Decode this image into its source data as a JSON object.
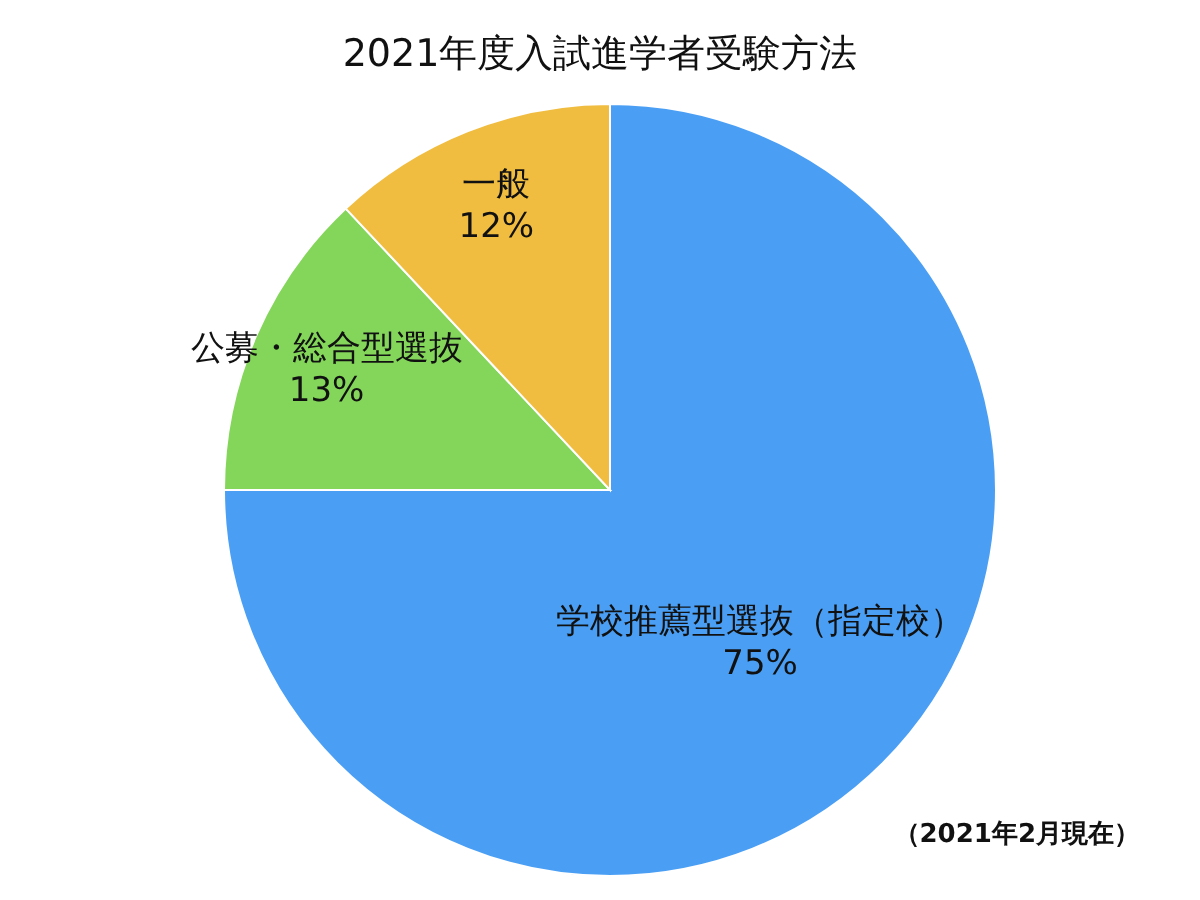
{
  "chart_data": {
    "type": "pie",
    "title": "2021年度入試進学者受験方法",
    "categories": [
      "学校推薦型選抜（指定校）",
      "公募・総合型選抜",
      "一般"
    ],
    "values": [
      75,
      13,
      12
    ],
    "colors": [
      "#4a9ff5",
      "#84d65a",
      "#f0bd40"
    ],
    "value_labels": [
      "75%",
      "13%",
      "12%"
    ],
    "annotations": [
      "（2021年2月現在）"
    ]
  }
}
